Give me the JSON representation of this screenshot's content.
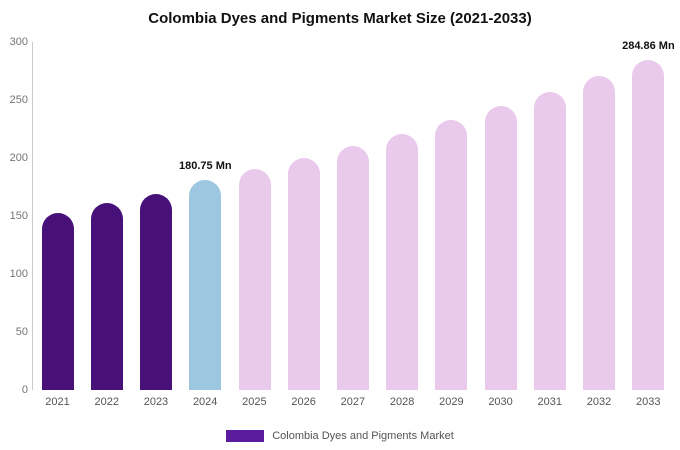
{
  "chart_data": {
    "type": "bar",
    "title": "Colombia Dyes and Pigments Market Size (2021-2033)",
    "categories": [
      "2021",
      "2022",
      "2023",
      "2024",
      "2025",
      "2026",
      "2027",
      "2028",
      "2029",
      "2030",
      "2031",
      "2032",
      "2033"
    ],
    "values": [
      152.9,
      160.8,
      169.2,
      180.75,
      190.1,
      199.9,
      210.3,
      221.1,
      232.6,
      244.6,
      257.2,
      270.5,
      284.86
    ],
    "ylim": [
      0,
      300
    ],
    "yticks": [
      0,
      50,
      100,
      150,
      200,
      250,
      300
    ],
    "grid": false,
    "legend_position": "bottom",
    "legend": [
      {
        "label": "Colombia Dyes and Pigments Market",
        "color": "#5b1d9e"
      }
    ],
    "bar_colors": [
      "#471179",
      "#471179",
      "#471179",
      "#9dc6e0",
      "#e9c9ec",
      "#e9c9ec",
      "#e9c9ec",
      "#e9c9ec",
      "#e9c9ec",
      "#e9c9ec",
      "#e9c9ec",
      "#e9c9ec",
      "#e9c9ec"
    ],
    "annotations": [
      {
        "index": 3,
        "text": "180.75 Mn"
      },
      {
        "index": 12,
        "text": "284.86 Mn"
      }
    ]
  },
  "colors": {
    "axis_line": "#cccccc",
    "tick_text": "#757575",
    "xlabel_text": "#555555",
    "title_text": "#111111"
  }
}
